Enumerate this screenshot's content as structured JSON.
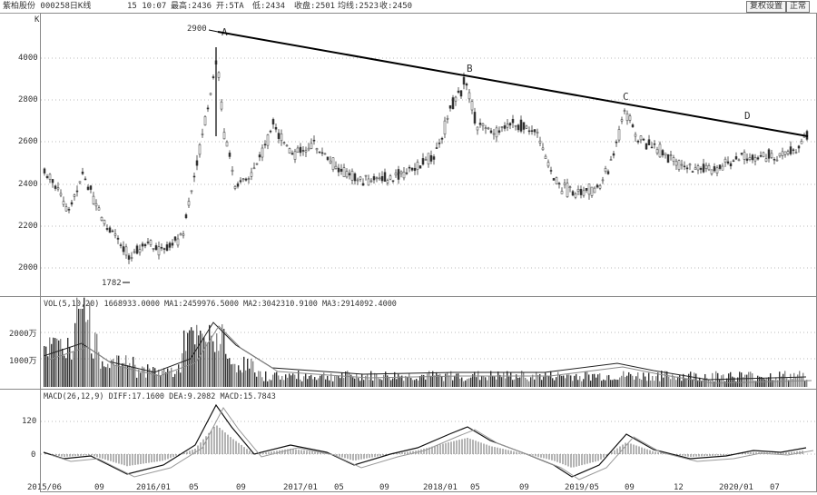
{
  "window": {
    "title": "紫柏股份 000258日K线",
    "info_time": "15 10:07",
    "info_high": "最高:2436",
    "info_open": "开:5TA",
    "info_low": "低:2434",
    "info_close": "收盘:2501",
    "info_ma": "均线:2523",
    "info_last": "收:2450",
    "btn_switch": "复权设置",
    "btn_restore": "正常"
  },
  "main_panel": {
    "panel_label": "K",
    "y_ticks": [
      "2000",
      "2200",
      "2400",
      "2600",
      "2800",
      "4000"
    ],
    "low_label": "1782",
    "high_label": "2900",
    "points": [
      "A",
      "B",
      "C",
      "D"
    ]
  },
  "volume_panel": {
    "header": "VOL(5,10,20) 1668933.0000  MA1:2459976.5000  MA2:3042310.9100  MA3:2914092.4000",
    "y_ticks": [
      "2000万",
      "1000万"
    ]
  },
  "macd_panel": {
    "header": "MACD(26,12,9)  DIFF:17.1600  DEA:9.2082  MACD:15.7843",
    "y_ticks": [
      "120",
      "0"
    ]
  },
  "x_axis": {
    "labels": [
      "2015/06",
      "09",
      "2016/01",
      "05",
      "09",
      "2017/01",
      "05",
      "09",
      "2018/01",
      "05",
      "09",
      "2019/05",
      "09",
      "12",
      "2020/01",
      "07"
    ]
  },
  "colors": {
    "price_line": "#333333",
    "volume_bar": "#333333",
    "ma": "#444444"
  }
}
